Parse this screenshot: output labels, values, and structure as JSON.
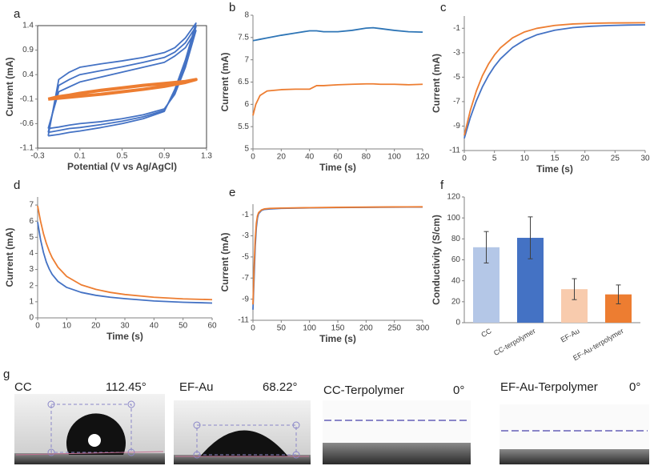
{
  "chart_data": [
    {
      "label": "a",
      "type": "line",
      "frame": true,
      "xlabel": "Potential (V vs Ag/AgCl)",
      "ylabel": "Current (mA)",
      "x": [
        -0.2,
        -0.1,
        0,
        0.1,
        0.3,
        0.5,
        0.7,
        0.9,
        1.0,
        1.1,
        1.2,
        1.1,
        1.0,
        0.9,
        0.7,
        0.5,
        0.3,
        0.1,
        0,
        -0.1,
        -0.2
      ],
      "xlim": [
        -0.3,
        1.3
      ],
      "xticks": [
        -0.3,
        0.1,
        0.5,
        0.9,
        1.3
      ],
      "ylim": [
        -1.1,
        1.4
      ],
      "yticks": [
        -1.1,
        -0.6,
        -0.1,
        0.4,
        0.9,
        1.4
      ],
      "series": [
        {
          "color": "#4472c4",
          "values": [
            -0.85,
            0.3,
            0.45,
            0.55,
            0.62,
            0.68,
            0.75,
            0.85,
            0.95,
            1.15,
            1.45,
            0.7,
            0.1,
            -0.35,
            -0.5,
            -0.6,
            -0.68,
            -0.75,
            -0.78,
            -0.82,
            -0.85
          ]
        },
        {
          "color": "#4472c4",
          "values": [
            -0.78,
            0.18,
            0.3,
            0.4,
            0.48,
            0.56,
            0.65,
            0.75,
            0.86,
            1.05,
            1.38,
            0.62,
            0.05,
            -0.33,
            -0.46,
            -0.55,
            -0.62,
            -0.68,
            -0.7,
            -0.74,
            -0.78
          ]
        },
        {
          "color": "#4472c4",
          "values": [
            -0.7,
            0.05,
            0.15,
            0.25,
            0.35,
            0.45,
            0.55,
            0.65,
            0.78,
            0.95,
            1.3,
            0.55,
            0,
            -0.3,
            -0.42,
            -0.5,
            -0.56,
            -0.6,
            -0.63,
            -0.67,
            -0.7
          ]
        },
        {
          "color": "#ed7d31",
          "values": [
            -0.1,
            -0.05,
            -0.02,
            0.02,
            0.08,
            0.13,
            0.18,
            0.22,
            0.24,
            0.26,
            0.3,
            0.24,
            0.2,
            0.16,
            0.1,
            0.05,
            0,
            -0.04,
            -0.06,
            -0.08,
            -0.1
          ]
        }
      ]
    },
    {
      "label": "b",
      "type": "line",
      "xlabel": "Time (s)",
      "ylabel": "Current (mA)",
      "x": [
        0,
        2,
        5,
        10,
        20,
        30,
        40,
        45,
        50,
        60,
        70,
        80,
        85,
        90,
        100,
        110,
        120
      ],
      "xlim": [
        0,
        120
      ],
      "xticks": [
        0,
        20,
        40,
        60,
        80,
        100,
        120
      ],
      "ylim": [
        5,
        8
      ],
      "yticks": [
        5,
        5.5,
        6,
        6.5,
        7,
        7.5,
        8
      ],
      "series": [
        {
          "color": "#2e75b6",
          "values": [
            7.43,
            7.44,
            7.46,
            7.49,
            7.55,
            7.6,
            7.65,
            7.65,
            7.63,
            7.63,
            7.66,
            7.71,
            7.72,
            7.7,
            7.66,
            7.63,
            7.62
          ]
        },
        {
          "color": "#ed7d31",
          "values": [
            5.75,
            6.0,
            6.2,
            6.3,
            6.33,
            6.34,
            6.34,
            6.42,
            6.42,
            6.44,
            6.45,
            6.46,
            6.46,
            6.45,
            6.45,
            6.44,
            6.45
          ]
        }
      ]
    },
    {
      "label": "c",
      "type": "line",
      "xlabel": "Time (s)",
      "ylabel": "Current (mA)",
      "x": [
        0,
        1,
        2,
        3,
        4,
        5,
        6,
        8,
        10,
        12,
        15,
        18,
        21,
        24,
        27,
        30
      ],
      "xlim": [
        0,
        30
      ],
      "xticks": [
        0,
        5,
        10,
        15,
        20,
        25,
        30
      ],
      "ylim": [
        -11,
        0
      ],
      "yticks": [
        -11,
        -9,
        -7,
        -5,
        -3,
        -1
      ],
      "series": [
        {
          "color": "#4472c4",
          "values": [
            -10,
            -8.31,
            -6.93,
            -5.8,
            -4.88,
            -4.12,
            -3.5,
            -2.58,
            -1.96,
            -1.54,
            -1.16,
            -0.95,
            -0.84,
            -0.78,
            -0.74,
            -0.72
          ]
        },
        {
          "color": "#ed7d31",
          "values": [
            -9.75,
            -7.72,
            -6.13,
            -4.89,
            -3.94,
            -3.19,
            -2.6,
            -1.79,
            -1.3,
            -1.01,
            -0.77,
            -0.65,
            -0.6,
            -0.57,
            -0.56,
            -0.55
          ]
        }
      ]
    },
    {
      "label": "d",
      "type": "line",
      "xlabel": "Time (s)",
      "ylabel": "Current (mA)",
      "x": [
        0,
        1,
        2,
        3,
        4,
        5,
        7,
        10,
        15,
        20,
        25,
        30,
        40,
        50,
        60
      ],
      "xlim": [
        0,
        60
      ],
      "xticks": [
        0,
        10,
        20,
        30,
        40,
        50,
        60
      ],
      "ylim": [
        0,
        7.5
      ],
      "yticks": [
        0,
        1,
        2,
        3,
        4,
        5,
        6,
        7
      ],
      "series": [
        {
          "color": "#4472c4",
          "values": [
            5.95,
            4.86,
            4.06,
            3.46,
            3.03,
            2.7,
            2.26,
            1.89,
            1.58,
            1.4,
            1.28,
            1.19,
            1.05,
            0.97,
            0.92
          ]
        },
        {
          "color": "#ed7d31",
          "values": [
            6.95,
            6.0,
            5.23,
            4.62,
            4.13,
            3.73,
            3.14,
            2.57,
            2.05,
            1.77,
            1.58,
            1.45,
            1.28,
            1.18,
            1.13
          ]
        }
      ]
    },
    {
      "label": "e",
      "type": "line",
      "xlabel": "Time (s)",
      "ylabel": "Current (mA)",
      "x": [
        0,
        2,
        4,
        6,
        8,
        10,
        15,
        20,
        30,
        50,
        100,
        150,
        200,
        250,
        300
      ],
      "xlim": [
        0,
        300
      ],
      "xticks": [
        0,
        50,
        100,
        150,
        200,
        250,
        300
      ],
      "ylim": [
        -11,
        0
      ],
      "yticks": [
        -11,
        -9,
        -7,
        -5,
        -3,
        -1
      ],
      "series": [
        {
          "color": "#4472c4",
          "values": [
            -10,
            -7,
            -4,
            -2.2,
            -1.3,
            -0.9,
            -0.6,
            -0.5,
            -0.45,
            -0.4,
            -0.35,
            -0.32,
            -0.3,
            -0.28,
            -0.27
          ]
        },
        {
          "color": "#ed7d31",
          "values": [
            -9.5,
            -6,
            -3.3,
            -1.8,
            -1.1,
            -0.8,
            -0.55,
            -0.45,
            -0.4,
            -0.37,
            -0.33,
            -0.3,
            -0.28,
            -0.26,
            -0.25
          ]
        }
      ]
    },
    {
      "label": "f",
      "type": "bar",
      "ylabel": "Conductivity (S/cm)",
      "categories": [
        "CC",
        "CC-terpolymer",
        "EF-Au",
        "EF-Au-terpolymer"
      ],
      "values": [
        72,
        81,
        32,
        27
      ],
      "errors": [
        15,
        20,
        10,
        9
      ],
      "colors": [
        "#b4c7e7",
        "#4472c4",
        "#f8cbad",
        "#ed7d31"
      ],
      "ylim": [
        0,
        120
      ],
      "yticks": [
        0,
        20,
        40,
        60,
        80,
        100,
        120
      ]
    }
  ],
  "photos": {
    "label": "g",
    "items": [
      {
        "name": "CC",
        "angle": "112.45°"
      },
      {
        "name": "EF-Au",
        "angle": "68.22°"
      },
      {
        "name": "CC-Terpolymer",
        "angle": "0°"
      },
      {
        "name": "EF-Au-Terpolymer",
        "angle": "0°"
      }
    ]
  }
}
